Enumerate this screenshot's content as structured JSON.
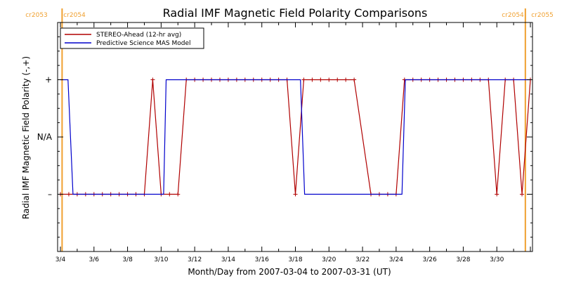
{
  "colors": {
    "stereo": "#b00000",
    "model": "#0000cc",
    "carrington": "#f0a030",
    "axis": "#000000"
  },
  "chart_data": {
    "type": "line",
    "title": "Radial IMF Magnetic Field Polarity Comparisons",
    "xlabel": "Month/Day from 2007-03-04 to 2007-03-31 (UT)",
    "ylabel": "Radial IMF Magnetic Field Polarity (-,+)",
    "xlim": [
      0,
      28
    ],
    "ylim": [
      -2,
      2
    ],
    "x_tick_values": [
      0,
      2,
      4,
      6,
      8,
      10,
      12,
      14,
      16,
      18,
      20,
      22,
      24,
      26
    ],
    "x_tick_labels": [
      "3/4",
      "3/6",
      "3/8",
      "3/10",
      "3/12",
      "3/14",
      "3/16",
      "3/18",
      "3/20",
      "3/22",
      "3/24",
      "3/26",
      "3/28",
      "3/30"
    ],
    "y_ticks": [
      {
        "value": 1,
        "label": "+"
      },
      {
        "value": 0,
        "label": "N/A"
      },
      {
        "value": -1,
        "label": "–"
      }
    ],
    "legend": {
      "placement": "top-left",
      "entries": [
        "STEREO-Ahead (12-hr avg)",
        "Predictive Science MAS Model"
      ]
    },
    "carrington_lines": [
      {
        "x": 0.1,
        "labels": [
          "cr2053",
          "cr2054"
        ]
      },
      {
        "x": 27.7,
        "labels": [
          "cr2054",
          "cr2055"
        ]
      }
    ],
    "series": [
      {
        "name": "STEREO-Ahead (12-hr avg)",
        "marker": "plus",
        "points": [
          [
            0.0,
            -1
          ],
          [
            0.5,
            -1
          ],
          [
            1.0,
            -1
          ],
          [
            1.5,
            -1
          ],
          [
            2.0,
            -1
          ],
          [
            2.5,
            -1
          ],
          [
            3.0,
            -1
          ],
          [
            3.5,
            -1
          ],
          [
            4.0,
            -1
          ],
          [
            4.5,
            -1
          ],
          [
            5.0,
            -1
          ],
          [
            5.5,
            1
          ],
          [
            6.0,
            -1
          ],
          [
            6.5,
            -1
          ],
          [
            7.0,
            -1
          ],
          [
            7.5,
            1
          ],
          [
            8.0,
            1
          ],
          [
            8.5,
            1
          ],
          [
            9.0,
            1
          ],
          [
            9.5,
            1
          ],
          [
            10.0,
            1
          ],
          [
            10.5,
            1
          ],
          [
            11.0,
            1
          ],
          [
            11.5,
            1
          ],
          [
            12.0,
            1
          ],
          [
            12.5,
            1
          ],
          [
            13.0,
            1
          ],
          [
            13.5,
            1
          ],
          [
            14.0,
            -1
          ],
          [
            14.5,
            1
          ],
          [
            15.0,
            1
          ],
          [
            15.5,
            1
          ],
          [
            16.0,
            1
          ],
          [
            16.5,
            1
          ],
          [
            17.0,
            1
          ],
          [
            17.5,
            1
          ],
          [
            18.5,
            -1
          ],
          [
            19.0,
            -1
          ],
          [
            19.5,
            -1
          ],
          [
            20.0,
            -1
          ],
          [
            20.5,
            1
          ],
          [
            21.0,
            1
          ],
          [
            21.5,
            1
          ],
          [
            22.0,
            1
          ],
          [
            22.5,
            1
          ],
          [
            23.0,
            1
          ],
          [
            23.5,
            1
          ],
          [
            24.0,
            1
          ],
          [
            24.5,
            1
          ],
          [
            25.0,
            1
          ],
          [
            25.5,
            1
          ],
          [
            26.0,
            -1
          ],
          [
            26.5,
            1
          ],
          [
            27.0,
            1
          ],
          [
            27.5,
            -1
          ],
          [
            28.0,
            1
          ]
        ]
      },
      {
        "name": "Predictive Science MAS Model",
        "marker": "none",
        "points": [
          [
            0.0,
            1
          ],
          [
            0.45,
            1
          ],
          [
            0.75,
            -1
          ],
          [
            6.15,
            -1
          ],
          [
            6.3,
            1
          ],
          [
            14.3,
            1
          ],
          [
            14.55,
            -1
          ],
          [
            20.35,
            -1
          ],
          [
            20.55,
            1
          ],
          [
            27.85,
            1
          ],
          [
            28.0,
            1
          ]
        ]
      }
    ]
  }
}
